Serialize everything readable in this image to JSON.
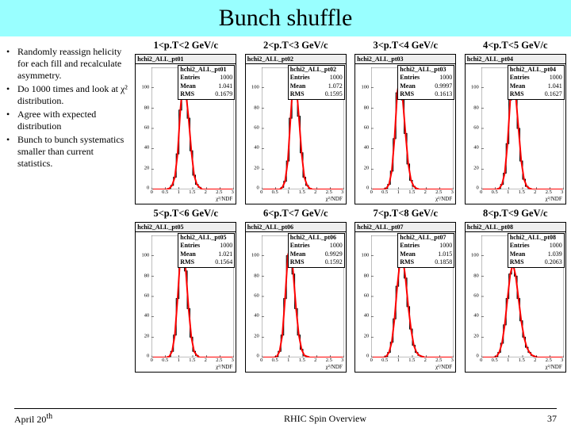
{
  "title": "Bunch shuffle",
  "bullets": [
    "Randomly reassign helicity for each fill and recalculate asymmetry.",
    "Do 1000 times and look at χ² distribution.",
    "Agree with expected distribution",
    "Bunch to bunch systematics smaller than current statistics."
  ],
  "footer": {
    "date": "April 20",
    "date_sup": "th",
    "center": "RHIC Spin Overview",
    "page": "37"
  },
  "chart_common": {
    "hist_color": "#000000",
    "curve_color": "#ff0000",
    "curve_width": 2,
    "grid_color": "#cccccc",
    "xlim": [
      0,
      3
    ],
    "ylim": [
      0,
      120
    ],
    "xticks": [
      0,
      0.5,
      1,
      1.5,
      2,
      2.5,
      3
    ],
    "yticks": [
      0,
      20,
      40,
      60,
      80,
      100
    ],
    "xaxis_label": "χ²/NDF",
    "bin_width": 0.1,
    "font_size_stats": 8,
    "font_size_ticks": 6.5
  },
  "panels": [
    {
      "col_title": "1<p.T<2 GeV/c",
      "hist_title": "hchi2_ALL_pt01",
      "entries": 1000,
      "mean": 1.041,
      "rms": 0.1679,
      "bins": [
        0,
        0,
        0,
        0,
        0,
        0,
        1,
        4,
        12,
        35,
        78,
        108,
        96,
        70,
        38,
        14,
        5,
        2,
        0,
        0,
        0,
        0,
        0,
        0,
        0,
        0,
        0,
        0,
        0,
        0
      ]
    },
    {
      "col_title": "2<p.T<3 GeV/c",
      "hist_title": "hchi2_ALL_pt02",
      "entries": 1000,
      "mean": 1.072,
      "rms": 0.1595,
      "bins": [
        0,
        0,
        0,
        0,
        0,
        0,
        0,
        2,
        8,
        28,
        70,
        112,
        105,
        72,
        36,
        12,
        4,
        1,
        0,
        0,
        0,
        0,
        0,
        0,
        0,
        0,
        0,
        0,
        0,
        0
      ]
    },
    {
      "col_title": "3<p.T<4 GeV/c",
      "hist_title": "hchi2_ALL_pt03",
      "entries": 1000,
      "mean": 0.9997,
      "rms": 0.1613,
      "bins": [
        0,
        0,
        0,
        0,
        0,
        1,
        5,
        18,
        50,
        95,
        112,
        88,
        55,
        25,
        9,
        3,
        1,
        0,
        0,
        0,
        0,
        0,
        0,
        0,
        0,
        0,
        0,
        0,
        0,
        0
      ]
    },
    {
      "col_title": "4<p.T<5 GeV/c",
      "hist_title": "hchi2_ALL_pt04",
      "entries": 1000,
      "mean": 1.041,
      "rms": 0.1627,
      "bins": [
        0,
        0,
        0,
        0,
        0,
        0,
        1,
        5,
        16,
        45,
        88,
        110,
        92,
        60,
        28,
        10,
        3,
        1,
        0,
        0,
        0,
        0,
        0,
        0,
        0,
        0,
        0,
        0,
        0,
        0
      ]
    },
    {
      "col_title": "5<p.T<6 GeV/c",
      "hist_title": "hchi2_ALL_pt05",
      "entries": 1000,
      "mean": 1.021,
      "rms": 0.1564,
      "bins": [
        0,
        0,
        0,
        0,
        0,
        0,
        1,
        6,
        22,
        58,
        100,
        112,
        85,
        48,
        20,
        6,
        2,
        0,
        0,
        0,
        0,
        0,
        0,
        0,
        0,
        0,
        0,
        0,
        0,
        0
      ]
    },
    {
      "col_title": "6<p.T<7 GeV/c",
      "hist_title": "hchi2_ALL_pt06",
      "entries": 1000,
      "mean": 0.9929,
      "rms": 0.1592,
      "bins": [
        0,
        0,
        0,
        0,
        0,
        1,
        6,
        22,
        58,
        100,
        110,
        82,
        48,
        22,
        8,
        2,
        1,
        0,
        0,
        0,
        0,
        0,
        0,
        0,
        0,
        0,
        0,
        0,
        0,
        0
      ]
    },
    {
      "col_title": "7<p.T<8 GeV/c",
      "hist_title": "hchi2_ALL_pt07",
      "entries": 1000,
      "mean": 1.015,
      "rms": 0.1858,
      "bins": [
        0,
        0,
        0,
        0,
        0,
        1,
        5,
        15,
        38,
        70,
        95,
        98,
        78,
        50,
        28,
        12,
        5,
        2,
        1,
        0,
        0,
        0,
        0,
        0,
        0,
        0,
        0,
        0,
        0,
        0
      ]
    },
    {
      "col_title": "8<p.T<9 GeV/c",
      "hist_title": "hchi2_ALL_pt08",
      "entries": 1000,
      "mean": 1.039,
      "rms": 0.2063,
      "bins": [
        0,
        0,
        0,
        0,
        0,
        1,
        5,
        14,
        32,
        58,
        82,
        92,
        80,
        58,
        36,
        20,
        10,
        5,
        2,
        1,
        0,
        0,
        0,
        0,
        0,
        0,
        0,
        0,
        0,
        0
      ]
    }
  ]
}
